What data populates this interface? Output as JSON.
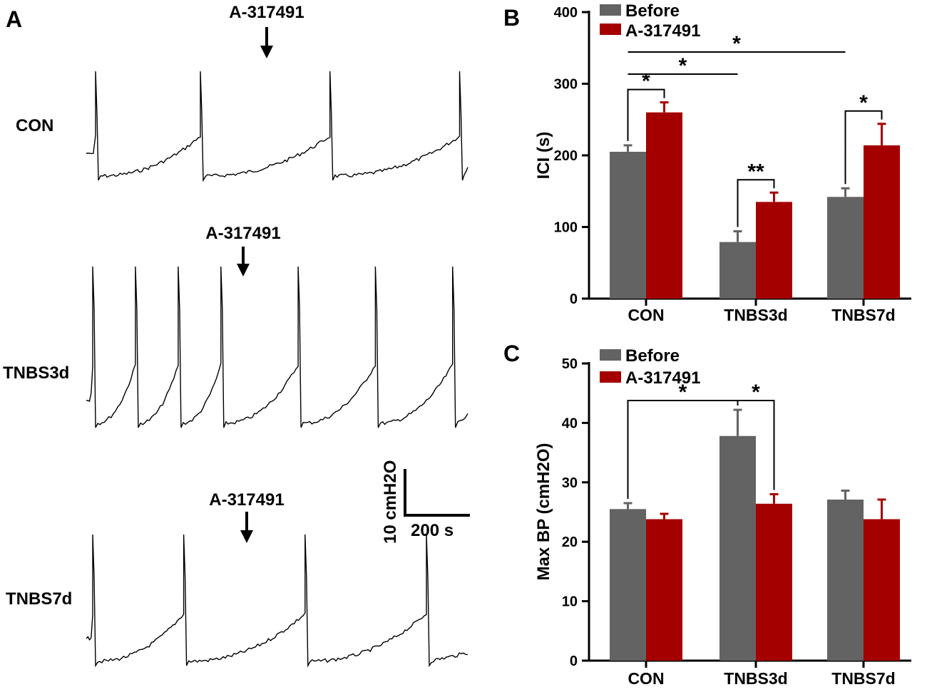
{
  "panelA": {
    "letter": "A",
    "traces": [
      {
        "label": "CON",
        "drug": "A-317491",
        "before_period": 380,
        "after_period": 470
      },
      {
        "label": "TNBS3d",
        "drug": "A-317491",
        "before_period": 155,
        "after_period": 280
      },
      {
        "label": "TNBS7d",
        "drug": "A-317491",
        "before_period": 330,
        "after_period": 440
      }
    ],
    "scale_bar": {
      "y_label": "10 cmH2O",
      "x_label": "200 s"
    }
  },
  "colors": {
    "before": "#636363",
    "after": "#a50000",
    "axis": "#000000"
  },
  "chart_data": [
    {
      "id": "B",
      "letter": "B",
      "type": "bar",
      "ylabel": "ICI (s)",
      "xlabel": "",
      "ylim": [
        0,
        400
      ],
      "yticks": [
        "0",
        "100",
        "200",
        "300",
        "400"
      ],
      "categories": [
        "CON",
        "TNBS3d",
        "TNBS7d"
      ],
      "series": [
        {
          "name": "Before",
          "values": [
            205,
            79,
            142
          ],
          "errors": [
            9,
            15,
            12
          ]
        },
        {
          "name": "A-317491",
          "values": [
            260,
            135,
            214
          ],
          "errors": [
            14,
            13,
            30
          ]
        }
      ],
      "legend": [
        "Before",
        "A-317491"
      ],
      "significance": [
        {
          "from": [
            0,
            0
          ],
          "to": [
            0,
            1
          ],
          "label": "*"
        },
        {
          "from": [
            1,
            0
          ],
          "to": [
            1,
            1
          ],
          "label": "**"
        },
        {
          "from": [
            2,
            0
          ],
          "to": [
            2,
            1
          ],
          "label": "*"
        },
        {
          "from": [
            0,
            0
          ],
          "to": [
            1,
            0
          ],
          "label": "*"
        },
        {
          "from": [
            0,
            0
          ],
          "to": [
            2,
            0
          ],
          "label": "*"
        }
      ]
    },
    {
      "id": "C",
      "letter": "C",
      "type": "bar",
      "ylabel": "Max BP (cmH2O)",
      "xlabel": "",
      "ylim": [
        0,
        50
      ],
      "yticks": [
        "0",
        "10",
        "20",
        "30",
        "40",
        "50"
      ],
      "categories": [
        "CON",
        "TNBS3d",
        "TNBS7d"
      ],
      "series": [
        {
          "name": "Before",
          "values": [
            25.5,
            37.8,
            27.1
          ],
          "errors": [
            1.0,
            4.4,
            1.5
          ]
        },
        {
          "name": "A-317491",
          "values": [
            23.8,
            26.4,
            23.8
          ],
          "errors": [
            0.9,
            1.6,
            3.3
          ]
        }
      ],
      "legend": [
        "Before",
        "A-317491"
      ],
      "significance": [
        {
          "from": [
            0,
            0
          ],
          "to": [
            1,
            0
          ],
          "label": "*"
        },
        {
          "from": [
            1,
            0
          ],
          "to": [
            1,
            1
          ],
          "label": "*"
        }
      ]
    }
  ]
}
